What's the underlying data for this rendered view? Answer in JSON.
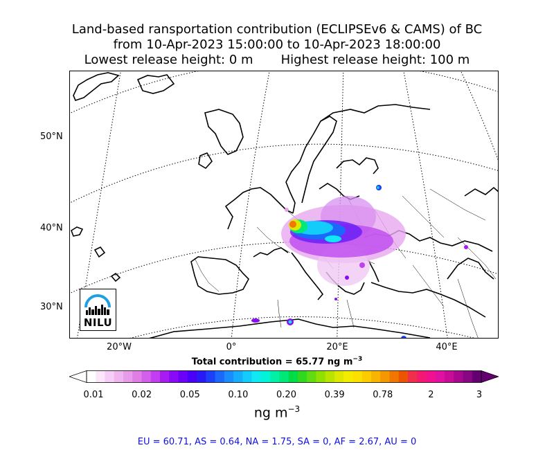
{
  "title": {
    "line1": "Land-based ransportation contribution (ECLIPSEv6 & CAMS) of BC",
    "line2": "from 10-Apr-2023 15:00:00 to 10-Apr-2023 18:00:00",
    "line3_low": "Lowest release height: 0 m",
    "line3_high": "Highest release height: 100 m"
  },
  "map": {
    "lat_labels": [
      "50°N",
      "40°N",
      "30°N"
    ],
    "lon_labels": [
      "20°W",
      "0°",
      "20°E",
      "40°E"
    ],
    "logo": "NILU"
  },
  "total_label": "Total contribution = 65.77 ng m",
  "total_exp": "−3",
  "colorbar": {
    "tick_labels": [
      "0.01",
      "0.02",
      "0.05",
      "0.10",
      "0.20",
      "0.39",
      "0.78",
      "2",
      "3"
    ],
    "unit": "ng m",
    "unit_exp": "−3",
    "colors": [
      "#ffffff",
      "#fbe6fb",
      "#f6cdf6",
      "#f0b4f0",
      "#e89be8",
      "#df7fe6",
      "#d260ea",
      "#c13ff0",
      "#a81cf2",
      "#8a0af5",
      "#6a00f8",
      "#4a00f6",
      "#2a18f5",
      "#1c40f8",
      "#1c68fa",
      "#1a8cfc",
      "#18acfc",
      "#14ccfa",
      "#10e8f4",
      "#00f4d8",
      "#00f0a8",
      "#00e878",
      "#00dc48",
      "#30d820",
      "#60dc10",
      "#90e000",
      "#b8e400",
      "#dce800",
      "#f4ec00",
      "#fce000",
      "#fccc00",
      "#f8b400",
      "#f49800",
      "#f07800",
      "#ec5400",
      "#f0304a",
      "#f41870",
      "#f01090",
      "#e010a0",
      "#c80c98",
      "#a80890",
      "#880884",
      "#640070"
    ]
  },
  "regions_text": "EU = 60.71,  AS = 0.64,  NA = 1.75,  SA = 0,  AF = 2.67,  AU = 0"
}
